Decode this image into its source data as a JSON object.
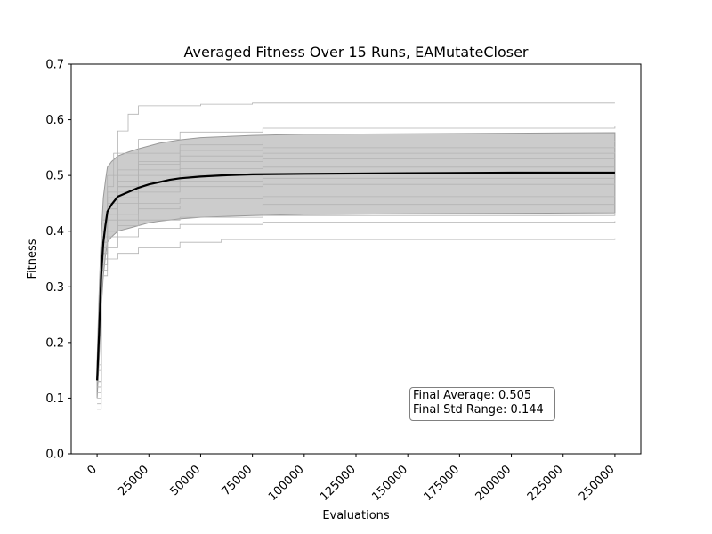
{
  "chart_data": {
    "type": "line",
    "title": "Averaged Fitness Over 15 Runs, EAMutateCloser",
    "xlabel": "Evaluations",
    "ylabel": "Fitness",
    "xlim": [
      -12500,
      262500
    ],
    "ylim": [
      0.0,
      0.7
    ],
    "xticks": [
      0,
      25000,
      50000,
      75000,
      100000,
      125000,
      150000,
      175000,
      200000,
      225000,
      250000
    ],
    "xtick_labels": [
      "0",
      "25000",
      "50000",
      "75000",
      "100000",
      "125000",
      "150000",
      "175000",
      "200000",
      "225000",
      "250000"
    ],
    "yticks": [
      0.0,
      0.1,
      0.2,
      0.3,
      0.4,
      0.5,
      0.6,
      0.7
    ],
    "ytick_labels": [
      "0.0",
      "0.1",
      "0.2",
      "0.3",
      "0.4",
      "0.5",
      "0.6",
      "0.7"
    ],
    "grid": false,
    "colors": {
      "average": "#000000",
      "band_fill": "#cccccc",
      "band_edge": "#999999",
      "runs": "#b3b3b3"
    },
    "average": {
      "x": [
        0,
        1000,
        2000,
        3000,
        4000,
        5000,
        7000,
        10000,
        15000,
        20000,
        25000,
        30000,
        35000,
        40000,
        50000,
        60000,
        75000,
        100000,
        150000,
        200000,
        250000
      ],
      "y": [
        0.132,
        0.22,
        0.32,
        0.38,
        0.41,
        0.435,
        0.448,
        0.462,
        0.47,
        0.478,
        0.484,
        0.488,
        0.492,
        0.495,
        0.498,
        0.5,
        0.502,
        0.503,
        0.504,
        0.505,
        0.505
      ]
    },
    "std_band": {
      "x": [
        0,
        1000,
        2000,
        3000,
        4000,
        5000,
        7000,
        10000,
        15000,
        20000,
        25000,
        30000,
        40000,
        50000,
        75000,
        100000,
        150000,
        200000,
        250000
      ],
      "upper": [
        0.165,
        0.29,
        0.39,
        0.46,
        0.49,
        0.515,
        0.525,
        0.535,
        0.542,
        0.548,
        0.553,
        0.558,
        0.564,
        0.568,
        0.572,
        0.574,
        0.575,
        0.576,
        0.577
      ],
      "lower": [
        0.1,
        0.17,
        0.26,
        0.32,
        0.355,
        0.38,
        0.39,
        0.4,
        0.405,
        0.41,
        0.415,
        0.418,
        0.422,
        0.425,
        0.428,
        0.43,
        0.431,
        0.432,
        0.433
      ]
    },
    "runs": [
      {
        "x": [
          0,
          2000,
          5000,
          8000,
          10000,
          15000,
          20000,
          50000,
          75000,
          250000
        ],
        "y": [
          0.12,
          0.4,
          0.48,
          0.54,
          0.58,
          0.61,
          0.625,
          0.628,
          0.63,
          0.63
        ]
      },
      {
        "x": [
          0,
          2000,
          5000,
          10000,
          20000,
          40000,
          80000,
          250000
        ],
        "y": [
          0.13,
          0.42,
          0.5,
          0.54,
          0.565,
          0.578,
          0.585,
          0.588
        ]
      },
      {
        "x": [
          0,
          2000,
          5000,
          10000,
          20000,
          40000,
          80000,
          250000
        ],
        "y": [
          0.15,
          0.38,
          0.47,
          0.51,
          0.54,
          0.555,
          0.56,
          0.562
        ]
      },
      {
        "x": [
          0,
          2000,
          5000,
          10000,
          20000,
          40000,
          80000,
          250000
        ],
        "y": [
          0.11,
          0.37,
          0.45,
          0.49,
          0.52,
          0.545,
          0.55,
          0.552
        ]
      },
      {
        "x": [
          0,
          2000,
          5000,
          10000,
          20000,
          40000,
          80000,
          250000
        ],
        "y": [
          0.14,
          0.4,
          0.46,
          0.5,
          0.525,
          0.535,
          0.54,
          0.542
        ]
      },
      {
        "x": [
          0,
          2000,
          5000,
          10000,
          20000,
          40000,
          80000,
          250000
        ],
        "y": [
          0.12,
          0.36,
          0.44,
          0.48,
          0.51,
          0.525,
          0.53,
          0.532
        ]
      },
      {
        "x": [
          0,
          2000,
          5000,
          10000,
          20000,
          40000,
          80000,
          250000
        ],
        "y": [
          0.13,
          0.39,
          0.45,
          0.48,
          0.5,
          0.512,
          0.515,
          0.515
        ]
      },
      {
        "x": [
          0,
          2000,
          5000,
          10000,
          20000,
          40000,
          80000,
          250000
        ],
        "y": [
          0.16,
          0.38,
          0.44,
          0.47,
          0.49,
          0.5,
          0.503,
          0.505
        ]
      },
      {
        "x": [
          0,
          2000,
          5000,
          10000,
          20000,
          40000,
          80000,
          250000
        ],
        "y": [
          0.1,
          0.36,
          0.43,
          0.46,
          0.48,
          0.49,
          0.495,
          0.495
        ]
      },
      {
        "x": [
          0,
          2000,
          5000,
          10000,
          20000,
          40000,
          80000,
          250000
        ],
        "y": [
          0.12,
          0.35,
          0.42,
          0.45,
          0.47,
          0.48,
          0.484,
          0.485
        ]
      },
      {
        "x": [
          0,
          2000,
          5000,
          10000,
          20000,
          40000,
          80000,
          250000
        ],
        "y": [
          0.14,
          0.34,
          0.4,
          0.43,
          0.45,
          0.458,
          0.462,
          0.463
        ]
      },
      {
        "x": [
          0,
          2000,
          5000,
          10000,
          20000,
          40000,
          80000,
          250000
        ],
        "y": [
          0.11,
          0.36,
          0.4,
          0.42,
          0.44,
          0.445,
          0.448,
          0.448
        ]
      },
      {
        "x": [
          0,
          2000,
          5000,
          10000,
          20000,
          40000,
          80000,
          250000
        ],
        "y": [
          0.13,
          0.35,
          0.39,
          0.41,
          0.42,
          0.425,
          0.428,
          0.43
        ]
      },
      {
        "x": [
          0,
          2000,
          5000,
          10000,
          20000,
          40000,
          80000,
          250000
        ],
        "y": [
          0.09,
          0.33,
          0.37,
          0.39,
          0.405,
          0.412,
          0.416,
          0.418
        ]
      },
      {
        "x": [
          0,
          2000,
          5000,
          10000,
          20000,
          40000,
          60000,
          250000
        ],
        "y": [
          0.08,
          0.32,
          0.35,
          0.36,
          0.37,
          0.38,
          0.385,
          0.387
        ]
      }
    ],
    "annotation": {
      "final_average": "Final Average: 0.505",
      "final_std_range": "Final Std Range: 0.144"
    }
  }
}
